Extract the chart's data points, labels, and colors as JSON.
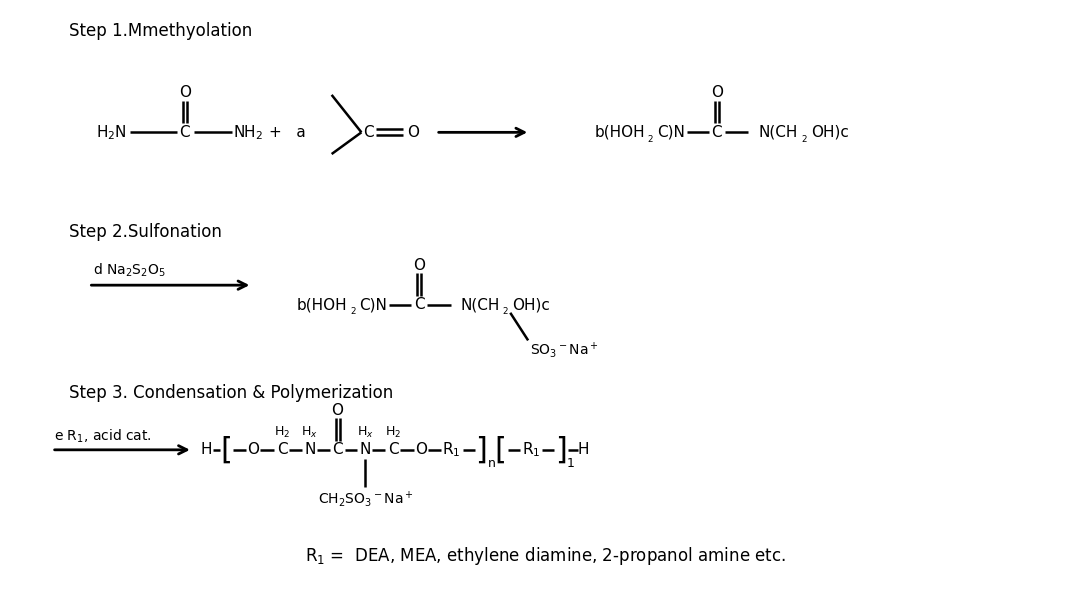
{
  "bg_color": "#ffffff",
  "fig_width": 10.9,
  "fig_height": 5.94,
  "dpi": 100,
  "step1_label": "Step 1.Mmethyolation",
  "step2_label": "Step 2.Sulfonation",
  "step3_label": "Step 3. Condensation & Polymerization",
  "footer": "R$_1$ =  DEA, MEA, ethylene diamine, 2-propanol amine etc."
}
